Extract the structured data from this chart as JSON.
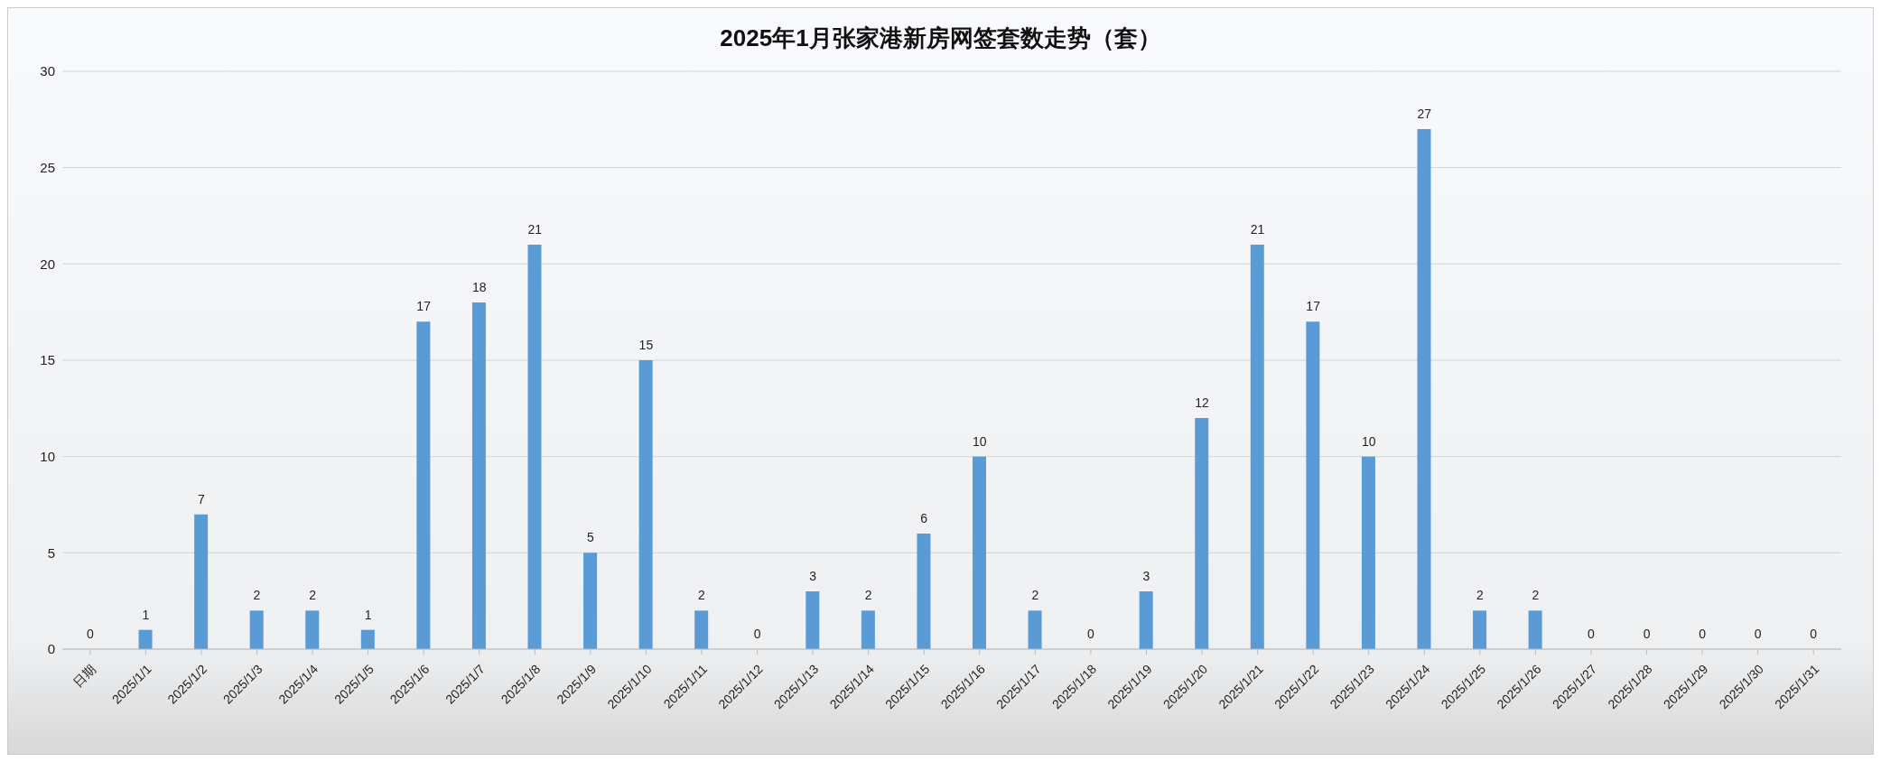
{
  "chart_data": {
    "type": "bar",
    "title": "2025年1月张家港新房网签套数走势（套）",
    "categories": [
      "日期",
      "2025/1/1",
      "2025/1/2",
      "2025/1/3",
      "2025/1/4",
      "2025/1/5",
      "2025/1/6",
      "2025/1/7",
      "2025/1/8",
      "2025/1/9",
      "2025/1/10",
      "2025/1/11",
      "2025/1/12",
      "2025/1/13",
      "2025/1/14",
      "2025/1/15",
      "2025/1/16",
      "2025/1/17",
      "2025/1/18",
      "2025/1/19",
      "2025/1/20",
      "2025/1/21",
      "2025/1/22",
      "2025/1/23",
      "2025/1/24",
      "2025/1/25",
      "2025/1/26",
      "2025/1/27",
      "2025/1/28",
      "2025/1/29",
      "2025/1/30",
      "2025/1/31"
    ],
    "values": [
      0,
      1,
      7,
      2,
      2,
      1,
      17,
      18,
      21,
      5,
      15,
      2,
      0,
      3,
      2,
      6,
      10,
      2,
      0,
      3,
      12,
      21,
      17,
      10,
      27,
      2,
      2,
      0,
      0,
      0,
      0,
      0
    ],
    "color": "#5b9bd5",
    "ylim": [
      0,
      30
    ],
    "yticks": [
      0,
      5,
      10,
      15,
      20,
      25,
      30
    ],
    "grid": "y",
    "data_labels": true,
    "legend": false
  }
}
